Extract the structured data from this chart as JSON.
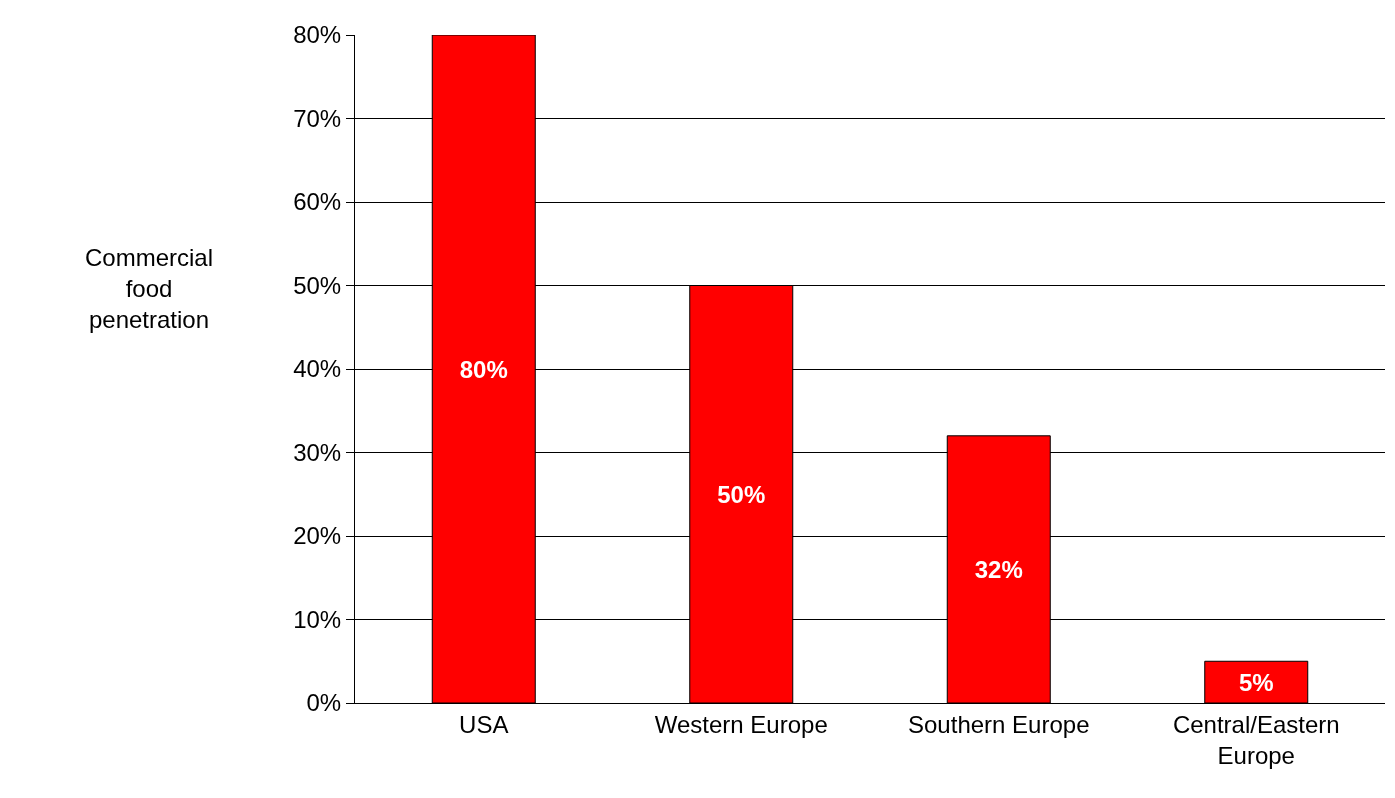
{
  "chart_data": {
    "type": "bar",
    "ylabel": "Commercial food penetration",
    "categories": [
      "USA",
      "Western Europe",
      "Southern Europe",
      "Central/Eastern Europe"
    ],
    "values": [
      80,
      50,
      32,
      5
    ],
    "value_labels": [
      "80%",
      "50%",
      "32%",
      "5%"
    ],
    "color": "#ff0000",
    "ylim": [
      0,
      80
    ],
    "yticks": [
      {
        "value": 0,
        "label": "0%"
      },
      {
        "value": 10,
        "label": "10%"
      },
      {
        "value": 20,
        "label": "20%"
      },
      {
        "value": 30,
        "label": "30%"
      },
      {
        "value": 40,
        "label": "40%"
      },
      {
        "value": 50,
        "label": "50%"
      },
      {
        "value": 60,
        "label": "60%"
      },
      {
        "value": 70,
        "label": "70%"
      },
      {
        "value": 80,
        "label": "80%"
      }
    ],
    "grid": "y"
  }
}
